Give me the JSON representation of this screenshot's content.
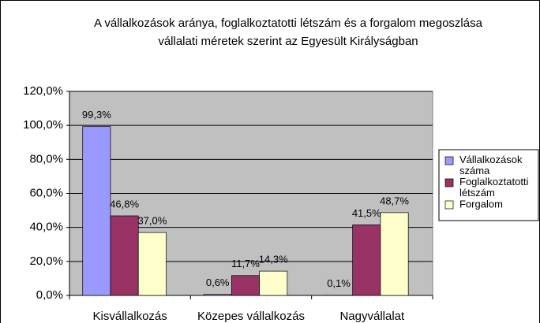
{
  "chart_data": {
    "type": "bar",
    "title": [
      "A vállalkozások aránya, foglalkoztatotti létszám és a forgalom megoszlása",
      "vállalati méretek szerint az Egyesült Királyságban"
    ],
    "categories": [
      "Kisvállalkozás",
      "Közepes vállalkozás",
      "Nagyvállalat"
    ],
    "series": [
      {
        "name": "Vállalkozások száma",
        "color": "#9999ff",
        "values": [
          99.3,
          0.6,
          0.1
        ],
        "value_labels": [
          "99,3%",
          "0,6%",
          "0,1%"
        ]
      },
      {
        "name": "Foglalkoztatotti létszám",
        "color": "#993366",
        "values": [
          46.8,
          11.7,
          41.5
        ],
        "value_labels": [
          "46,8%",
          "11,7%",
          "41,5%"
        ]
      },
      {
        "name": "Forgalom",
        "color": "#ffffcc",
        "values": [
          37.0,
          14.3,
          48.7
        ],
        "value_labels": [
          "37,0%",
          "14,3%",
          "48,7%"
        ]
      }
    ],
    "ylim": [
      0,
      120
    ],
    "yticks": [
      {
        "value": 0,
        "label": "0,0%"
      },
      {
        "value": 20,
        "label": "20,0%"
      },
      {
        "value": 40,
        "label": "40,0%"
      },
      {
        "value": 60,
        "label": "60,0%"
      },
      {
        "value": 80,
        "label": "80,0%"
      },
      {
        "value": 100,
        "label": "100,0%"
      },
      {
        "value": 120,
        "label": "120,0%"
      }
    ],
    "grid": true,
    "legend": "right"
  }
}
